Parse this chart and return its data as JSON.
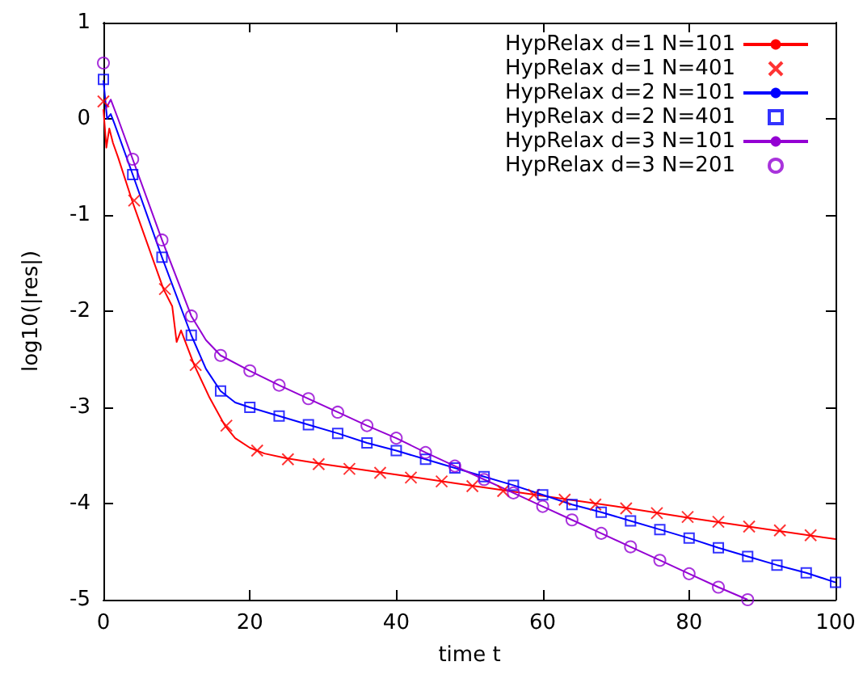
{
  "chart_data": {
    "type": "line",
    "xlabel": "time t",
    "ylabel": "log10(|res|)",
    "xlim": [
      0,
      100
    ],
    "xticks": [
      0,
      20,
      40,
      60,
      80,
      100
    ],
    "ylim": [
      -5,
      1
    ],
    "yticks": [
      -5,
      -4,
      -3,
      -2,
      -1,
      0,
      1
    ],
    "grid": false,
    "legend": "top right",
    "series": [
      {
        "name": "HypRelax d=1 N=101",
        "marker": "none",
        "color": "#ff0000",
        "x": [
          0,
          0.4,
          0.8,
          1.3,
          2,
          4,
          8.2,
          9.4,
          10,
          10.6,
          12.4,
          14.5,
          16.6,
          18,
          20,
          22,
          25,
          30,
          40,
          50,
          60,
          70,
          80,
          90,
          100
        ],
        "values": [
          0.1,
          -0.3,
          -0.1,
          -0.25,
          -0.4,
          -0.87,
          -1.77,
          -1.95,
          -2.32,
          -2.2,
          -2.56,
          -2.9,
          -3.19,
          -3.32,
          -3.42,
          -3.48,
          -3.53,
          -3.59,
          -3.7,
          -3.81,
          -3.92,
          -4.03,
          -4.15,
          -4.26,
          -4.37
        ]
      },
      {
        "name": "HypRelax d=1 N=401",
        "type": "scatter",
        "marker": "cross",
        "color": "#ff0000",
        "x": [
          0,
          4.2,
          8.4,
          12.6,
          16.8,
          21,
          25.2,
          29.4,
          33.6,
          37.8,
          42,
          46.2,
          50.4,
          54.6,
          58.8,
          63,
          67.2,
          71.4,
          75.6,
          79.8,
          84,
          88.2,
          92.4,
          96.6
        ],
        "values": [
          0.18,
          -0.85,
          -1.77,
          -2.56,
          -3.19,
          -3.45,
          -3.54,
          -3.59,
          -3.64,
          -3.68,
          -3.73,
          -3.77,
          -3.82,
          -3.87,
          -3.91,
          -3.96,
          -4.01,
          -4.05,
          -4.1,
          -4.14,
          -4.19,
          -4.24,
          -4.28,
          -4.33
        ]
      },
      {
        "name": "HypRelax d=2 N=101",
        "marker": "none",
        "color": "#0000ff",
        "x": [
          0,
          0.5,
          1,
          1.5,
          4,
          8,
          12,
          14,
          16,
          18,
          20,
          24,
          28,
          32,
          36,
          40,
          44,
          48,
          52,
          56,
          60,
          64,
          68,
          72,
          76,
          80,
          84,
          88,
          92,
          96,
          100
        ],
        "values": [
          0.4,
          0.0,
          0.05,
          -0.05,
          -0.58,
          -1.44,
          -2.25,
          -2.6,
          -2.83,
          -2.95,
          -3.0,
          -3.09,
          -3.18,
          -3.27,
          -3.37,
          -3.45,
          -3.54,
          -3.63,
          -3.72,
          -3.81,
          -3.91,
          -4.01,
          -4.09,
          -4.18,
          -4.27,
          -4.36,
          -4.46,
          -4.55,
          -4.64,
          -4.72,
          -4.82
        ]
      },
      {
        "name": "HypRelax d=2 N=401",
        "type": "scatter",
        "marker": "square",
        "color": "#0000ff",
        "x": [
          0,
          4,
          8,
          12,
          16,
          20,
          24,
          28,
          32,
          36,
          40,
          44,
          48,
          52,
          56,
          60,
          64,
          68,
          72,
          76,
          80,
          84,
          88,
          92,
          96,
          100
        ],
        "values": [
          0.41,
          -0.58,
          -1.44,
          -2.25,
          -2.83,
          -3.0,
          -3.09,
          -3.18,
          -3.27,
          -3.37,
          -3.45,
          -3.54,
          -3.63,
          -3.72,
          -3.81,
          -3.91,
          -4.01,
          -4.09,
          -4.18,
          -4.27,
          -4.36,
          -4.46,
          -4.55,
          -4.64,
          -4.72,
          -4.82
        ]
      },
      {
        "name": "HypRelax d=3 N=101",
        "marker": "none",
        "color": "#9400d3",
        "x": [
          0.3,
          1,
          2,
          4,
          8,
          12,
          14,
          16,
          20,
          24,
          28,
          32,
          36,
          40,
          44,
          48,
          52,
          56,
          60,
          64,
          68,
          72,
          76,
          80,
          84,
          88
        ],
        "values": [
          0.1,
          0.2,
          0.0,
          -0.42,
          -1.26,
          -2.05,
          -2.3,
          -2.46,
          -2.62,
          -2.77,
          -2.91,
          -3.05,
          -3.19,
          -3.32,
          -3.47,
          -3.61,
          -3.75,
          -3.89,
          -4.03,
          -4.17,
          -4.31,
          -4.45,
          -4.59,
          -4.73,
          -4.87,
          -5.0
        ]
      },
      {
        "name": "HypRelax d=3 N=201",
        "type": "scatter",
        "marker": "circle",
        "color": "#9400d3",
        "x": [
          0,
          4,
          8,
          12,
          16,
          20,
          24,
          28,
          32,
          36,
          40,
          44,
          48,
          52,
          56,
          60,
          64,
          68,
          72,
          76,
          80,
          84,
          88
        ],
        "values": [
          0.58,
          -0.42,
          -1.26,
          -2.05,
          -2.46,
          -2.62,
          -2.77,
          -2.91,
          -3.05,
          -3.19,
          -3.32,
          -3.47,
          -3.61,
          -3.75,
          -3.89,
          -4.03,
          -4.17,
          -4.31,
          -4.45,
          -4.59,
          -4.73,
          -4.87,
          -5.0
        ]
      }
    ]
  }
}
